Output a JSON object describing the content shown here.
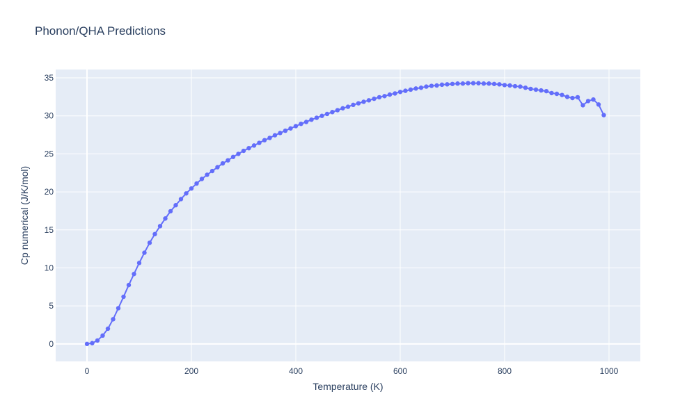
{
  "chart_data": {
    "type": "line",
    "title": "Phonon/QHA Predictions",
    "xlabel": "Temperature (K)",
    "ylabel": "Cp numerical (J/K/mol)",
    "xlim": [
      -60,
      1060
    ],
    "ylim": [
      -2.3,
      36.1
    ],
    "xticks": [
      0,
      200,
      400,
      600,
      800,
      1000
    ],
    "yticks": [
      0,
      5,
      10,
      15,
      20,
      25,
      30,
      35
    ],
    "grid": true,
    "colors": {
      "series": "#636efa",
      "plot_bg": "#e5ecf6",
      "grid": "#ffffff",
      "text": "#2a3f5f"
    },
    "series": [
      {
        "x": [
          0,
          10,
          20,
          30,
          40,
          50,
          60,
          70,
          80,
          90,
          100,
          110,
          120,
          130,
          140,
          150,
          160,
          170,
          180,
          190,
          200,
          210,
          220,
          230,
          240,
          250,
          260,
          270,
          280,
          290,
          300,
          310,
          320,
          330,
          340,
          350,
          360,
          370,
          380,
          390,
          400,
          410,
          420,
          430,
          440,
          450,
          460,
          470,
          480,
          490,
          500,
          510,
          520,
          530,
          540,
          550,
          560,
          570,
          580,
          590,
          600,
          610,
          620,
          630,
          640,
          650,
          660,
          670,
          680,
          690,
          700,
          710,
          720,
          730,
          740,
          750,
          760,
          770,
          780,
          790,
          800,
          810,
          820,
          830,
          840,
          850,
          860,
          870,
          880,
          890,
          900,
          910,
          920,
          930,
          940,
          950,
          960,
          970,
          980,
          990
        ],
        "y": [
          0,
          0.1,
          0.45,
          1.1,
          2.0,
          3.25,
          4.7,
          6.2,
          7.75,
          9.2,
          10.65,
          12.0,
          13.3,
          14.45,
          15.5,
          16.5,
          17.45,
          18.25,
          19.05,
          19.8,
          20.45,
          21.1,
          21.7,
          22.25,
          22.75,
          23.25,
          23.75,
          24.15,
          24.6,
          25.0,
          25.4,
          25.75,
          26.1,
          26.45,
          26.8,
          27.1,
          27.45,
          27.75,
          28.05,
          28.35,
          28.65,
          28.95,
          29.2,
          29.5,
          29.75,
          30.0,
          30.25,
          30.5,
          30.75,
          31.0,
          31.2,
          31.45,
          31.65,
          31.85,
          32.05,
          32.25,
          32.45,
          32.6,
          32.8,
          32.95,
          33.15,
          33.3,
          33.45,
          33.6,
          33.7,
          33.85,
          33.95,
          34.0,
          34.1,
          34.15,
          34.2,
          34.25,
          34.25,
          34.3,
          34.3,
          34.3,
          34.25,
          34.25,
          34.2,
          34.15,
          34.05,
          34.0,
          33.9,
          33.85,
          33.7,
          33.55,
          33.45,
          33.35,
          33.25,
          33.0,
          32.9,
          32.75,
          32.5,
          32.35,
          32.45,
          31.4,
          31.95,
          32.15,
          31.5,
          30.1
        ]
      }
    ]
  }
}
